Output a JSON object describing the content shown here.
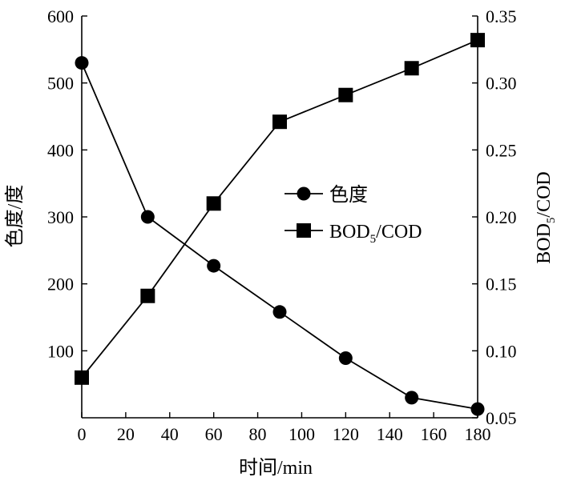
{
  "chart_data": {
    "type": "line",
    "x_axis": {
      "label": "时间/min",
      "range": [
        0,
        180
      ],
      "ticks": [
        0,
        20,
        40,
        60,
        80,
        100,
        120,
        140,
        160,
        180
      ]
    },
    "y_left_axis": {
      "label": "色度/度",
      "range": [
        0,
        600
      ],
      "ticks": [
        100,
        200,
        300,
        400,
        500,
        600
      ]
    },
    "y_right_axis": {
      "label_prefix": "BOD",
      "label_sub": "5",
      "label_suffix": "/COD",
      "range": [
        0.05,
        0.35
      ],
      "ticks": [
        "0.05",
        "0.10",
        "0.15",
        "0.20",
        "0.25",
        "0.30",
        "0.35"
      ]
    },
    "series": [
      {
        "name": "色度",
        "axis": "left",
        "marker": "circle",
        "x": [
          0,
          30,
          60,
          90,
          120,
          150,
          180
        ],
        "y": [
          530,
          300,
          227,
          158,
          89,
          30,
          13
        ]
      },
      {
        "name_prefix": "BOD",
        "name_sub": "5",
        "name_suffix": "/COD",
        "axis": "right",
        "marker": "square",
        "x": [
          0,
          30,
          60,
          90,
          120,
          150,
          180
        ],
        "y": [
          0.08,
          0.141,
          0.21,
          0.271,
          0.291,
          0.311,
          0.332
        ]
      }
    ],
    "legend_position": "center-right",
    "grid": false,
    "color": "#000000"
  }
}
